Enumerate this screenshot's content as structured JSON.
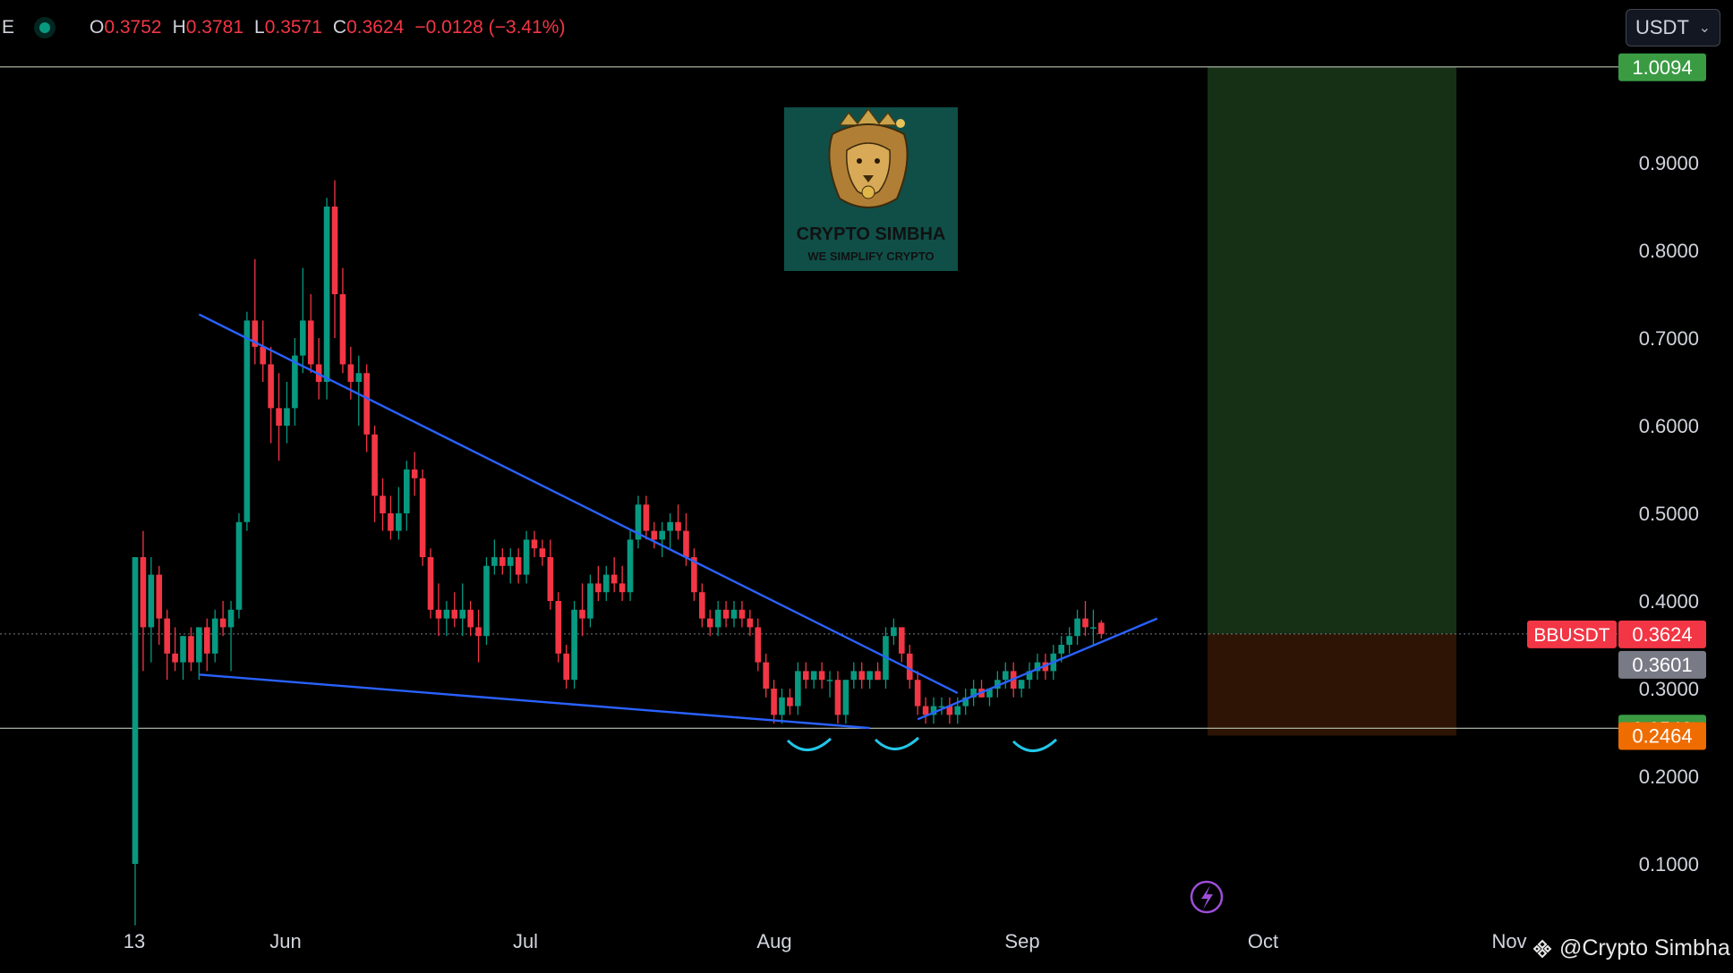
{
  "header": {
    "symbol_fragment": "E",
    "open_label": "O",
    "open": "0.3752",
    "high_label": "H",
    "high": "0.3781",
    "low_label": "L",
    "low": "0.3571",
    "close_label": "C",
    "close": "0.3624",
    "change": "−0.0128 (−3.41%)"
  },
  "currency_select": {
    "value": "USDT"
  },
  "logo": {
    "title": "CRYPTO SIMBHA",
    "tagline": "WE SIMPLIFY CRYPTO"
  },
  "watermark": "@Crypto Simbha",
  "colors": {
    "up": "#089981",
    "down": "#f23645",
    "trendline": "#2962ff",
    "bottom_mark": "#22c7e8",
    "target_zone": "#163016",
    "stop_zone": "#2d1404",
    "target_label": "#3a9b43",
    "stop_label": "#ef6c00",
    "price_label": "#f23645",
    "gray_label": "#787b86"
  },
  "chart_data": {
    "type": "candlestick",
    "pair": "BBUSDT",
    "x_ticks": [
      "13",
      "Jun",
      "Jul",
      "Aug",
      "Sep",
      "Oct",
      "Nov"
    ],
    "y_ticks": [
      "0.1000",
      "0.2000",
      "0.3000",
      "0.4000",
      "0.5000",
      "0.6000",
      "0.7000",
      "0.8000",
      "0.9000"
    ],
    "ylim": [
      0.0,
      1.04
    ],
    "last_price": "0.3624",
    "price_label_gray": "0.3601",
    "target_price": "1.0094",
    "support_price": "0.2548",
    "stop_price": "0.2464",
    "candles": [
      [
        0.1,
        0.45,
        0.03,
        0.45
      ],
      [
        0.45,
        0.48,
        0.32,
        0.37
      ],
      [
        0.37,
        0.45,
        0.33,
        0.43
      ],
      [
        0.43,
        0.44,
        0.35,
        0.38
      ],
      [
        0.38,
        0.39,
        0.31,
        0.34
      ],
      [
        0.34,
        0.37,
        0.32,
        0.33
      ],
      [
        0.33,
        0.36,
        0.31,
        0.36
      ],
      [
        0.36,
        0.37,
        0.32,
        0.33
      ],
      [
        0.33,
        0.37,
        0.31,
        0.37
      ],
      [
        0.37,
        0.38,
        0.32,
        0.34
      ],
      [
        0.34,
        0.39,
        0.33,
        0.38
      ],
      [
        0.38,
        0.4,
        0.36,
        0.37
      ],
      [
        0.37,
        0.4,
        0.32,
        0.39
      ],
      [
        0.39,
        0.5,
        0.38,
        0.49
      ],
      [
        0.49,
        0.73,
        0.48,
        0.72
      ],
      [
        0.72,
        0.79,
        0.67,
        0.69
      ],
      [
        0.69,
        0.72,
        0.65,
        0.67
      ],
      [
        0.67,
        0.69,
        0.58,
        0.62
      ],
      [
        0.62,
        0.66,
        0.56,
        0.6
      ],
      [
        0.6,
        0.65,
        0.58,
        0.62
      ],
      [
        0.62,
        0.7,
        0.6,
        0.68
      ],
      [
        0.68,
        0.78,
        0.66,
        0.72
      ],
      [
        0.72,
        0.75,
        0.66,
        0.67
      ],
      [
        0.67,
        0.7,
        0.63,
        0.65
      ],
      [
        0.65,
        0.86,
        0.63,
        0.85
      ],
      [
        0.85,
        0.88,
        0.7,
        0.75
      ],
      [
        0.75,
        0.78,
        0.66,
        0.67
      ],
      [
        0.67,
        0.69,
        0.63,
        0.65
      ],
      [
        0.65,
        0.68,
        0.6,
        0.66
      ],
      [
        0.66,
        0.67,
        0.57,
        0.59
      ],
      [
        0.59,
        0.6,
        0.49,
        0.52
      ],
      [
        0.52,
        0.54,
        0.48,
        0.5
      ],
      [
        0.5,
        0.52,
        0.47,
        0.48
      ],
      [
        0.48,
        0.53,
        0.47,
        0.5
      ],
      [
        0.5,
        0.56,
        0.48,
        0.55
      ],
      [
        0.55,
        0.57,
        0.52,
        0.54
      ],
      [
        0.54,
        0.55,
        0.44,
        0.45
      ],
      [
        0.45,
        0.46,
        0.38,
        0.39
      ],
      [
        0.39,
        0.42,
        0.36,
        0.38
      ],
      [
        0.38,
        0.4,
        0.36,
        0.39
      ],
      [
        0.39,
        0.41,
        0.37,
        0.38
      ],
      [
        0.38,
        0.42,
        0.36,
        0.39
      ],
      [
        0.39,
        0.4,
        0.36,
        0.37
      ],
      [
        0.37,
        0.39,
        0.33,
        0.36
      ],
      [
        0.36,
        0.45,
        0.35,
        0.44
      ],
      [
        0.44,
        0.47,
        0.43,
        0.45
      ],
      [
        0.45,
        0.46,
        0.43,
        0.44
      ],
      [
        0.44,
        0.46,
        0.42,
        0.45
      ],
      [
        0.45,
        0.46,
        0.42,
        0.43
      ],
      [
        0.43,
        0.48,
        0.42,
        0.47
      ],
      [
        0.47,
        0.48,
        0.45,
        0.46
      ],
      [
        0.46,
        0.47,
        0.44,
        0.45
      ],
      [
        0.45,
        0.47,
        0.39,
        0.4
      ],
      [
        0.4,
        0.41,
        0.33,
        0.34
      ],
      [
        0.34,
        0.35,
        0.3,
        0.31
      ],
      [
        0.31,
        0.4,
        0.3,
        0.39
      ],
      [
        0.39,
        0.42,
        0.36,
        0.38
      ],
      [
        0.38,
        0.43,
        0.37,
        0.42
      ],
      [
        0.42,
        0.44,
        0.4,
        0.41
      ],
      [
        0.41,
        0.44,
        0.4,
        0.43
      ],
      [
        0.43,
        0.45,
        0.41,
        0.42
      ],
      [
        0.42,
        0.44,
        0.4,
        0.41
      ],
      [
        0.41,
        0.48,
        0.4,
        0.47
      ],
      [
        0.47,
        0.52,
        0.46,
        0.51
      ],
      [
        0.51,
        0.52,
        0.47,
        0.48
      ],
      [
        0.48,
        0.49,
        0.46,
        0.47
      ],
      [
        0.47,
        0.49,
        0.45,
        0.48
      ],
      [
        0.48,
        0.5,
        0.46,
        0.49
      ],
      [
        0.49,
        0.51,
        0.47,
        0.48
      ],
      [
        0.48,
        0.5,
        0.44,
        0.45
      ],
      [
        0.45,
        0.46,
        0.4,
        0.41
      ],
      [
        0.41,
        0.42,
        0.37,
        0.38
      ],
      [
        0.38,
        0.39,
        0.36,
        0.37
      ],
      [
        0.37,
        0.4,
        0.36,
        0.39
      ],
      [
        0.39,
        0.4,
        0.37,
        0.38
      ],
      [
        0.38,
        0.4,
        0.37,
        0.39
      ],
      [
        0.39,
        0.4,
        0.37,
        0.38
      ],
      [
        0.38,
        0.39,
        0.36,
        0.37
      ],
      [
        0.37,
        0.38,
        0.32,
        0.33
      ],
      [
        0.33,
        0.34,
        0.29,
        0.3
      ],
      [
        0.3,
        0.31,
        0.26,
        0.27
      ],
      [
        0.27,
        0.3,
        0.26,
        0.29
      ],
      [
        0.29,
        0.3,
        0.27,
        0.28
      ],
      [
        0.28,
        0.33,
        0.27,
        0.32
      ],
      [
        0.32,
        0.33,
        0.3,
        0.31
      ],
      [
        0.31,
        0.32,
        0.3,
        0.32
      ],
      [
        0.32,
        0.33,
        0.3,
        0.31
      ],
      [
        0.31,
        0.32,
        0.29,
        0.31
      ],
      [
        0.31,
        0.32,
        0.26,
        0.27
      ],
      [
        0.27,
        0.31,
        0.26,
        0.31
      ],
      [
        0.31,
        0.33,
        0.3,
        0.32
      ],
      [
        0.32,
        0.33,
        0.3,
        0.31
      ],
      [
        0.31,
        0.32,
        0.3,
        0.32
      ],
      [
        0.32,
        0.33,
        0.31,
        0.31
      ],
      [
        0.31,
        0.37,
        0.3,
        0.36
      ],
      [
        0.36,
        0.38,
        0.35,
        0.37
      ],
      [
        0.37,
        0.37,
        0.33,
        0.34
      ],
      [
        0.34,
        0.35,
        0.3,
        0.31
      ],
      [
        0.31,
        0.32,
        0.27,
        0.28
      ],
      [
        0.28,
        0.29,
        0.26,
        0.27
      ],
      [
        0.27,
        0.29,
        0.26,
        0.28
      ],
      [
        0.28,
        0.29,
        0.27,
        0.28
      ],
      [
        0.28,
        0.29,
        0.26,
        0.27
      ],
      [
        0.27,
        0.29,
        0.26,
        0.28
      ],
      [
        0.28,
        0.3,
        0.27,
        0.29
      ],
      [
        0.29,
        0.31,
        0.28,
        0.3
      ],
      [
        0.3,
        0.31,
        0.29,
        0.29
      ],
      [
        0.29,
        0.3,
        0.28,
        0.3
      ],
      [
        0.3,
        0.32,
        0.29,
        0.31
      ],
      [
        0.31,
        0.33,
        0.3,
        0.32
      ],
      [
        0.32,
        0.33,
        0.29,
        0.3
      ],
      [
        0.3,
        0.31,
        0.29,
        0.31
      ],
      [
        0.31,
        0.33,
        0.3,
        0.32
      ],
      [
        0.32,
        0.34,
        0.31,
        0.33
      ],
      [
        0.33,
        0.34,
        0.31,
        0.32
      ],
      [
        0.32,
        0.35,
        0.31,
        0.34
      ],
      [
        0.34,
        0.36,
        0.33,
        0.35
      ],
      [
        0.35,
        0.37,
        0.34,
        0.36
      ],
      [
        0.36,
        0.39,
        0.35,
        0.38
      ],
      [
        0.38,
        0.4,
        0.36,
        0.37
      ],
      [
        0.37,
        0.39,
        0.35,
        0.37
      ],
      [
        0.3752,
        0.3781,
        0.3571,
        0.3624
      ]
    ]
  }
}
